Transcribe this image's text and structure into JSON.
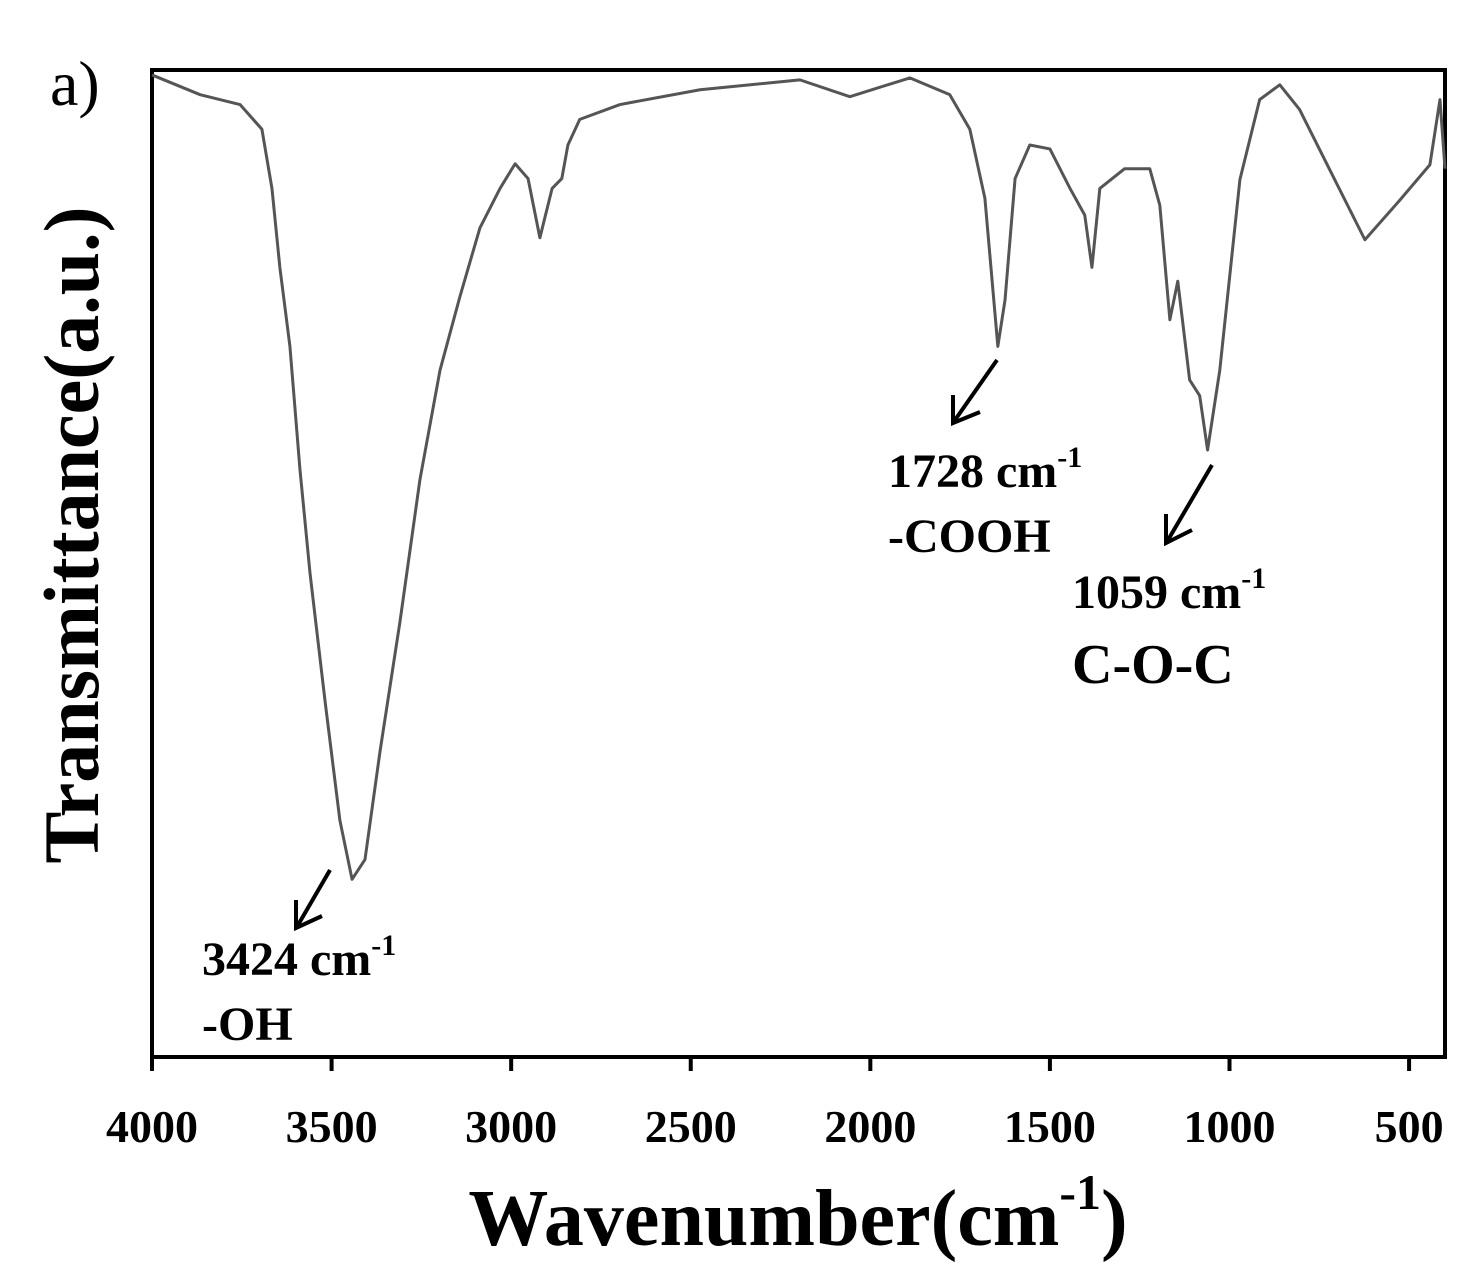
{
  "chart_data": {
    "type": "line",
    "panel_label": "a)",
    "xlabel": {
      "text": "Wavenumber(cm",
      "sup": "-1",
      "end": ")"
    },
    "ylabel": "Transmittance(a.u.)",
    "xlim": [
      4000,
      400
    ],
    "ylim": [
      0,
      100
    ],
    "xticks": [
      4000,
      3500,
      3000,
      2500,
      2000,
      1500,
      1000,
      500
    ],
    "series": [
      {
        "color": "#555555",
        "x": [
          4000,
          3866,
          3755,
          3694,
          3666,
          3644,
          3616,
          3588,
          3560,
          3518,
          3477,
          3443,
          3407,
          3365,
          3310,
          3254,
          3198,
          3143,
          3087,
          3031,
          2989,
          2953,
          2920,
          2886,
          2859,
          2842,
          2809,
          2697,
          2474,
          2196,
          2057,
          1890,
          1779,
          1723,
          1681,
          1645,
          1625,
          1597,
          1556,
          1500,
          1444,
          1403,
          1383,
          1361,
          1292,
          1222,
          1194,
          1166,
          1144,
          1111,
          1083,
          1061,
          1027,
          971,
          916,
          860,
          805,
          721,
          623,
          526,
          442,
          414,
          400
        ],
        "values": [
          99.5,
          97.5,
          96.5,
          94,
          88,
          80,
          72,
          59.5,
          49,
          36,
          24,
          18,
          20,
          31,
          44,
          58.5,
          69.6,
          77,
          84,
          88,
          90.5,
          89,
          83,
          88,
          89,
          92.4,
          95,
          96.5,
          98,
          99,
          97.3,
          99.2,
          97.5,
          94,
          87,
          72,
          76.7,
          89,
          92.4,
          92,
          88,
          85.3,
          80,
          88,
          90,
          90,
          86.3,
          74.7,
          78.6,
          68.6,
          67,
          61.5,
          69.6,
          88.9,
          97,
          98.5,
          96,
          89.9,
          82.8,
          86.8,
          90.4,
          97,
          90
        ]
      }
    ],
    "annotations": [
      {
        "text": "1728 cm",
        "sup": "-1",
        "group": "-COOH"
      },
      {
        "text": "1059 cm",
        "sup": "-1",
        "group": "C-O-C"
      },
      {
        "text": "3424 cm",
        "sup": "-1",
        "group": "-OH"
      }
    ]
  }
}
